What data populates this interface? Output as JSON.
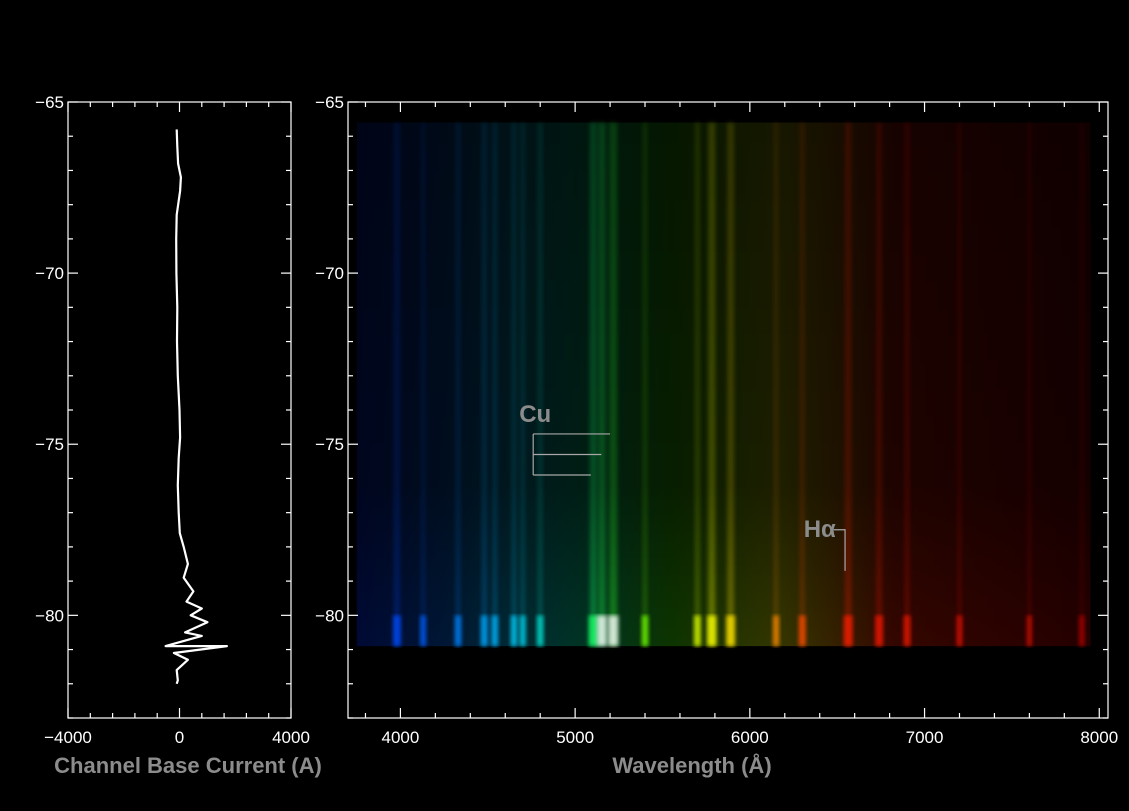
{
  "chart_data": [
    {
      "type": "line",
      "xlabel": "Channel Base Current (A)",
      "ylabel": "",
      "xlim": [
        -4000,
        4000
      ],
      "ylim": [
        -83,
        -65
      ],
      "xticks": [
        -4000,
        0,
        4000
      ],
      "xtick_labels": [
        "−4000",
        "0",
        "4000"
      ],
      "yticks": [
        -65,
        -70,
        -75,
        -80
      ],
      "ytick_labels": [
        "−65",
        "−70",
        "−75",
        "−80"
      ],
      "series": [
        {
          "points": [
            [
              -100,
              -65.8
            ],
            [
              -80,
              -66.3
            ],
            [
              -50,
              -66.8
            ],
            [
              50,
              -67.2
            ],
            [
              20,
              -67.6
            ],
            [
              -100,
              -68.3
            ],
            [
              -120,
              -69.0
            ],
            [
              -110,
              -70.0
            ],
            [
              -80,
              -71.0
            ],
            [
              -90,
              -72.0
            ],
            [
              -60,
              -73.0
            ],
            [
              0,
              -74.0
            ],
            [
              20,
              -74.8
            ],
            [
              -30,
              -75.4
            ],
            [
              -60,
              -76.2
            ],
            [
              -30,
              -77.0
            ],
            [
              10,
              -77.6
            ],
            [
              150,
              -78.0
            ],
            [
              300,
              -78.5
            ],
            [
              150,
              -78.9
            ],
            [
              500,
              -79.3
            ],
            [
              250,
              -79.6
            ],
            [
              800,
              -79.8
            ],
            [
              400,
              -80.0
            ],
            [
              1000,
              -80.2
            ],
            [
              200,
              -80.5
            ],
            [
              800,
              -80.6
            ],
            [
              -500,
              -80.9
            ],
            [
              1700,
              -80.9
            ],
            [
              -200,
              -81.1
            ],
            [
              300,
              -81.3
            ],
            [
              -100,
              -81.6
            ],
            [
              -60,
              -81.9
            ],
            [
              -100,
              -82.0
            ]
          ]
        }
      ],
      "grid": false
    },
    {
      "type": "heatmap",
      "xlabel": "Wavelength (Å)",
      "ylabel": "",
      "xlim": [
        3700,
        8050
      ],
      "ylim": [
        -83,
        -65
      ],
      "xticks": [
        4000,
        5000,
        6000,
        7000,
        8000
      ],
      "xtick_labels": [
        "4000",
        "5000",
        "6000",
        "7000",
        "8000"
      ],
      "yticks": [
        -65,
        -70,
        -75,
        -80
      ],
      "ytick_labels": [
        "−65",
        "−70",
        "−75",
        "−80"
      ],
      "data_extent": {
        "wavelength": [
          3750,
          7950
        ],
        "y": [
          -80.9,
          -65.6
        ]
      },
      "spectral_lines": [
        {
          "wavelength": 3980,
          "intensity": 0.55
        },
        {
          "wavelength": 4130,
          "intensity": 0.25
        },
        {
          "wavelength": 4330,
          "intensity": 0.35
        },
        {
          "wavelength": 4480,
          "intensity": 0.45
        },
        {
          "wavelength": 4540,
          "intensity": 0.4
        },
        {
          "wavelength": 4650,
          "intensity": 0.35
        },
        {
          "wavelength": 4700,
          "intensity": 0.3
        },
        {
          "wavelength": 4800,
          "intensity": 0.35
        },
        {
          "wavelength": 5105,
          "intensity": 0.9
        },
        {
          "wavelength": 5153,
          "intensity": 1.0
        },
        {
          "wavelength": 5218,
          "intensity": 1.0
        },
        {
          "wavelength": 5400,
          "intensity": 0.35
        },
        {
          "wavelength": 5700,
          "intensity": 0.4
        },
        {
          "wavelength": 5782,
          "intensity": 0.85
        },
        {
          "wavelength": 5890,
          "intensity": 0.75
        },
        {
          "wavelength": 6150,
          "intensity": 0.3
        },
        {
          "wavelength": 6300,
          "intensity": 0.4
        },
        {
          "wavelength": 6563,
          "intensity": 0.75
        },
        {
          "wavelength": 6740,
          "intensity": 0.6
        },
        {
          "wavelength": 6900,
          "intensity": 0.45
        },
        {
          "wavelength": 7200,
          "intensity": 0.3
        },
        {
          "wavelength": 7600,
          "intensity": 0.25
        },
        {
          "wavelength": 7900,
          "intensity": 0.2
        }
      ],
      "annotations": [
        {
          "text": "Cu",
          "lines": [
            [
              4760,
              5200,
              -74.7
            ],
            [
              4760,
              5150,
              -75.3
            ],
            [
              4760,
              5090,
              -75.9
            ]
          ]
        },
        {
          "text": "Hα",
          "lines": [
            [
              6480,
              6545,
              -77.5
            ]
          ],
          "pointer": {
            "wavelength": 6545,
            "y_from": -77.5,
            "y_to": -78.7
          }
        }
      ],
      "grid": false
    }
  ]
}
